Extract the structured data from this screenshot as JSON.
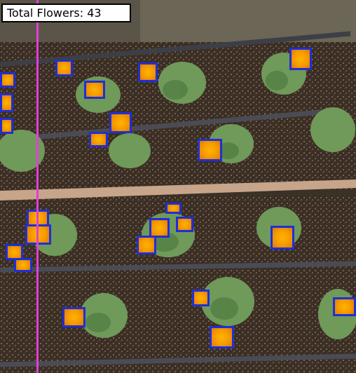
{
  "overlay": {
    "label": "Total Flowers: 43",
    "box_color": "#1f2fd6",
    "line_color": "#e23fd8"
  },
  "scene": {
    "description_icon": "marigold-garden-photo"
  }
}
